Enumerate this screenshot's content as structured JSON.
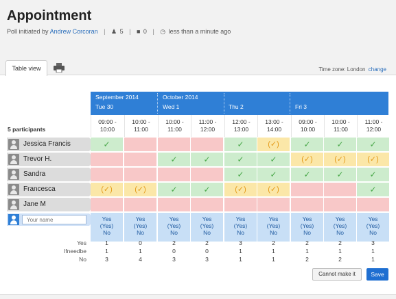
{
  "poll": {
    "title": "Appointment",
    "initiated_prefix": "Poll initiated by",
    "author": "Andrew Corcoran",
    "participants_count": "5",
    "comments_count": "0",
    "updated": "less than a minute ago"
  },
  "tabs": {
    "table_view": "Table view",
    "print_icon": "printer-icon"
  },
  "timezone": {
    "label": "Time zone: London",
    "change": "change"
  },
  "months": [
    {
      "label": "September 2014"
    },
    {
      "label": "October 2014"
    }
  ],
  "days": [
    {
      "label": "Tue 30"
    },
    {
      "label": "Wed 1"
    },
    {
      "label": "Thu 2"
    },
    {
      "label": "Fri 3"
    }
  ],
  "slots": [
    {
      "time": "09:00 -\n10:00"
    },
    {
      "time": "10:00 -\n11:00"
    },
    {
      "time": "10:00 -\n11:00"
    },
    {
      "time": "11:00 -\n12:00"
    },
    {
      "time": "12:00 -\n13:00"
    },
    {
      "time": "13:00 -\n14:00"
    },
    {
      "time": "09:00 -\n10:00"
    },
    {
      "time": "10:00 -\n11:00"
    },
    {
      "time": "11:00 -\n12:00"
    }
  ],
  "participants_label": "5 participants",
  "participants": [
    {
      "name": "Jessica Francis",
      "votes": [
        "y",
        "n",
        "n",
        "n",
        "y",
        "m",
        "y",
        "y",
        "y"
      ]
    },
    {
      "name": "Trevor H.",
      "votes": [
        "n",
        "n",
        "y",
        "y",
        "y",
        "y",
        "m",
        "m",
        "m"
      ]
    },
    {
      "name": "Sandra",
      "votes": [
        "n",
        "n",
        "n",
        "n",
        "y",
        "y",
        "y",
        "y",
        "y"
      ]
    },
    {
      "name": "Francesca",
      "votes": [
        "m",
        "m",
        "y",
        "y",
        "m",
        "m",
        "n",
        "n",
        "y"
      ]
    },
    {
      "name": "Jane M",
      "votes": [
        "n",
        "n",
        "n",
        "n",
        "n",
        "n",
        "n",
        "n",
        "n"
      ]
    }
  ],
  "vote_symbols": {
    "y": "✓",
    "m": "(✓)",
    "n": ""
  },
  "new_entry": {
    "placeholder": "Your name",
    "option_text": "Yes\n(Yes)\nNo"
  },
  "totals": {
    "labels": [
      "Yes",
      "Ifneedbe",
      "No"
    ],
    "yes": [
      "1",
      "0",
      "2",
      "2",
      "3",
      "2",
      "2",
      "2",
      "3"
    ],
    "ifneedbe": [
      "1",
      "1",
      "0",
      "0",
      "1",
      "1",
      "1",
      "1",
      "1"
    ],
    "no": [
      "3",
      "4",
      "3",
      "3",
      "1",
      "1",
      "2",
      "2",
      "1"
    ]
  },
  "buttons": {
    "cannot": "Cannot make it",
    "save": "Save"
  },
  "colors": {
    "accent": "#2f7fd6",
    "yes": "#cdeccd",
    "no": "#f8c8c8",
    "maybe": "#fbe7a8",
    "input": "#c8dff6"
  }
}
